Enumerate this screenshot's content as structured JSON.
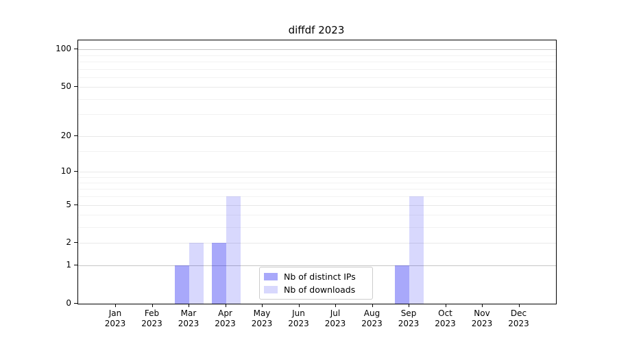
{
  "figure": {
    "title": "diffdf 2023"
  },
  "chart_data": {
    "type": "bar",
    "title": "diffdf 2023",
    "x_year": "2023",
    "categories": [
      "Jan",
      "Feb",
      "Mar",
      "Apr",
      "May",
      "Jun",
      "Jul",
      "Aug",
      "Sep",
      "Oct",
      "Nov",
      "Dec"
    ],
    "series": [
      {
        "name": "Nb of distinct IPs",
        "values": [
          0,
          0,
          1,
          2,
          0,
          0,
          0,
          0,
          1,
          0,
          0,
          0
        ],
        "color": "#0000f057"
      },
      {
        "name": "Nb of downloads",
        "values": [
          0,
          0,
          2,
          6,
          0,
          0,
          0,
          0,
          6,
          0,
          0,
          0
        ],
        "color": "#0000f027"
      }
    ],
    "xlabel": "",
    "ylabel": "",
    "yscale": "log1p",
    "ylim": [
      0,
      118
    ],
    "yticks": [
      0,
      1,
      2,
      5,
      10,
      20,
      50,
      100
    ],
    "minor_yticks": [
      3,
      4,
      6,
      7,
      8,
      9,
      15,
      30,
      40,
      60,
      70,
      80,
      90
    ],
    "emphasized_gridlines": [
      1,
      100
    ],
    "grid": true,
    "legend_position": "lower center"
  },
  "colors": {
    "background": "#ffffff",
    "axis": "#000000",
    "grid_major": "#e8e8e8",
    "grid_minor": "#f2f2f2",
    "grid_emphasis": "#c6c6c6",
    "legend_border": "#cccccc",
    "bar_distinct_ips": "#a8a8fa",
    "bar_downloads": "#d8d8fc"
  },
  "legend": {
    "items": [
      {
        "label": "Nb of distinct IPs"
      },
      {
        "label": "Nb of downloads"
      }
    ]
  }
}
